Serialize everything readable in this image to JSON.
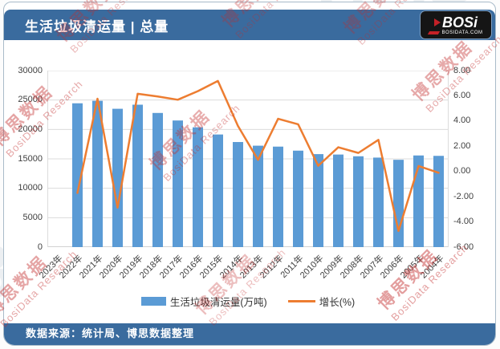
{
  "header": {
    "title": "生活垃圾清运量 | 总量",
    "logo": {
      "text": "BOSi",
      "site": "BOSIDATA.COM"
    }
  },
  "footer": {
    "source": "数据来源：统计局、博思数据整理"
  },
  "watermark": {
    "cn": "博思数据",
    "en": "BosiData Research",
    "big": "BOSi"
  },
  "colors": {
    "banner_blue": "#3a6b9e",
    "bar_blue": "#5b9bd5",
    "line_orange": "#ed7d31",
    "grid": "#dcdcdc",
    "axis_line": "#a6a6a6",
    "axis_text": "#404040",
    "watermark_red": "#c32b2b"
  },
  "chart_data": {
    "type": "bar",
    "combo": "bar+line",
    "categories": [
      "2023年",
      "2022年",
      "2021年",
      "2020年",
      "2019年",
      "2018年",
      "2017年",
      "2016年",
      "2015年",
      "2014年",
      "2013年",
      "2012年",
      "2011年",
      "2010年",
      "2009年",
      "2008年",
      "2007年",
      "2006年",
      "2005年",
      "2004年"
    ],
    "series": [
      {
        "name": "生活垃圾清运量(万吨)",
        "type": "bar",
        "axis": "left",
        "color": "#5b9bd5",
        "values": [
          null,
          24445.3,
          24869.2,
          23511.7,
          24206.2,
          22801.8,
          21520.9,
          20362.0,
          19141.9,
          17860.2,
          17238.6,
          17080.9,
          16395.3,
          15804.8,
          15733.7,
          15437.7,
          15214.5,
          14841.3,
          15576.8,
          15509.4
        ]
      },
      {
        "name": "增长(%)",
        "type": "line",
        "axis": "right",
        "color": "#ed7d31",
        "values": [
          null,
          -1.7,
          5.77,
          -2.87,
          6.16,
          5.95,
          5.69,
          6.37,
          7.18,
          3.61,
          0.92,
          4.18,
          3.74,
          0.45,
          1.92,
          1.47,
          2.51,
          -4.72,
          0.43,
          -0.1
        ]
      }
    ],
    "left_axis": {
      "min": 0,
      "max": 30000,
      "step": 5000,
      "ticks": [
        "30000",
        "25000",
        "20000",
        "15000",
        "10000",
        "5000",
        "0"
      ]
    },
    "right_axis": {
      "min": -6,
      "max": 8,
      "step": 2,
      "ticks": [
        "8.00",
        "6.00",
        "4.00",
        "2.00",
        "0.00",
        "-2.00",
        "-4.00",
        "-6.00"
      ]
    },
    "grid": true,
    "legend_position": "bottom",
    "note": "2023年 category is present on the axis but has no bar/line data point"
  }
}
